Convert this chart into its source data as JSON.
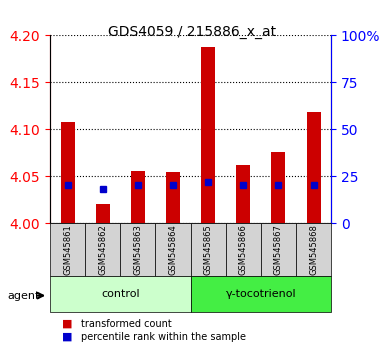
{
  "title": "GDS4059 / 215886_x_at",
  "samples": [
    "GSM545861",
    "GSM545862",
    "GSM545863",
    "GSM545864",
    "GSM545865",
    "GSM545866",
    "GSM545867",
    "GSM545868"
  ],
  "transformed_counts": [
    4.108,
    4.02,
    4.055,
    4.054,
    4.188,
    4.062,
    4.076,
    4.118
  ],
  "percentile_ranks": [
    20,
    18,
    20,
    20,
    22,
    20,
    20,
    20
  ],
  "y_min": 4.0,
  "y_max": 4.2,
  "y_ticks": [
    4.0,
    4.05,
    4.1,
    4.15,
    4.2
  ],
  "y2_ticks": [
    0,
    25,
    50,
    75,
    100
  ],
  "bar_color": "#cc0000",
  "dot_color": "#0000cc",
  "control_group": [
    0,
    1,
    2,
    3
  ],
  "treatment_group": [
    4,
    5,
    6,
    7
  ],
  "control_label": "control",
  "treatment_label": "γ-tocotrienol",
  "agent_label": "agent",
  "control_bg": "#ccffcc",
  "treatment_bg": "#44ee44",
  "sample_bg": "#d3d3d3",
  "legend_items": [
    "transformed count",
    "percentile rank within the sample"
  ],
  "bar_width": 0.4
}
